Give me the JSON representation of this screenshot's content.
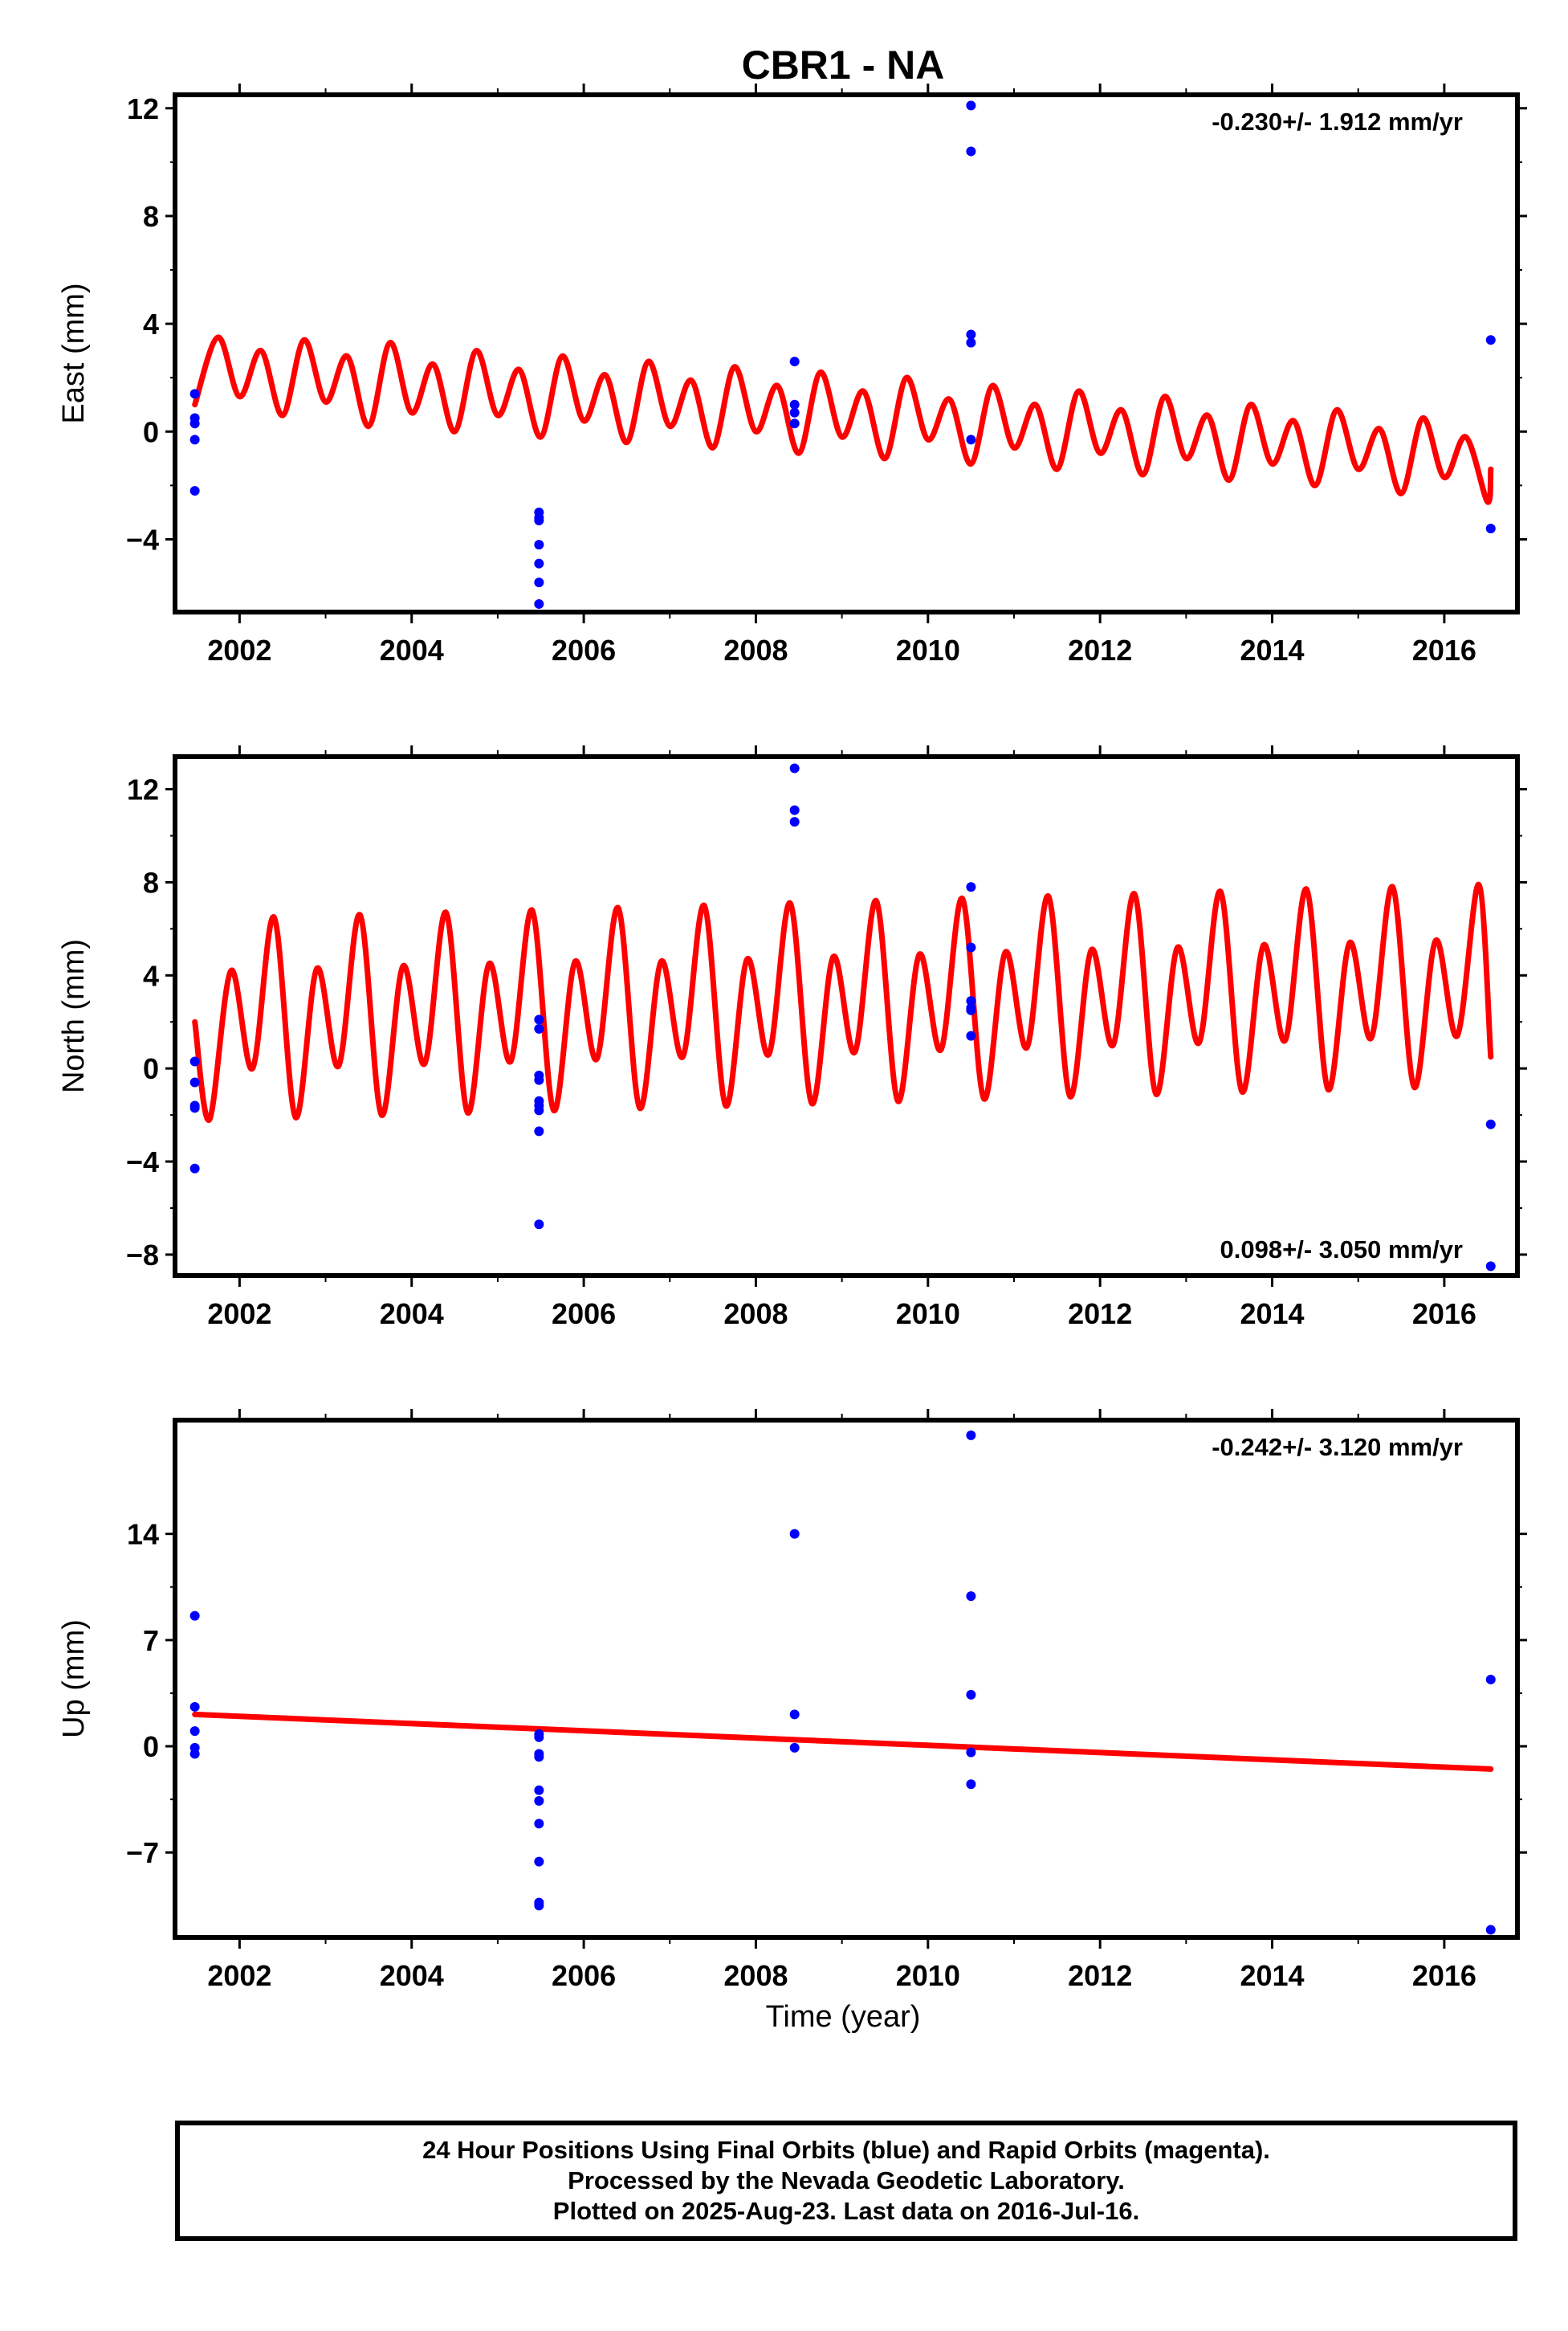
{
  "title": "CBR1 - NA",
  "x_axis_label": "Time (year)",
  "footer": {
    "line1": "24 Hour Positions Using Final Orbits (blue) and Rapid Orbits (magenta).",
    "line2": "Processed by the Nevada Geodetic Laboratory.",
    "line3": "Plotted on 2025-Aug-23. Last data on 2016-Jul-16."
  },
  "colors": {
    "final_orbits": "#0000ff",
    "fit_model": "#ff0000",
    "frame": "#000000"
  },
  "chart_data": [
    {
      "type": "scatter",
      "ylabel": "East (mm)",
      "rate_label": "-0.230+/- 1.912 mm/yr",
      "rate_position": "top-right",
      "xlim": [
        2001.25,
        2016.85
      ],
      "ylim": [
        -6.7,
        12.5
      ],
      "yticks": [
        -4,
        0,
        4,
        8,
        12
      ],
      "xticks": [
        2002,
        2004,
        2006,
        2008,
        2010,
        2012,
        2014,
        2016
      ],
      "series": [
        {
          "kind": "points",
          "x": [
            2001.48,
            2001.48,
            2001.48,
            2001.48,
            2001.48,
            2005.48,
            2005.48,
            2005.48,
            2005.48,
            2005.48,
            2005.48,
            2005.48,
            2008.45,
            2008.45,
            2008.45,
            2008.45,
            2010.5,
            2010.5,
            2010.5,
            2010.5,
            2010.5,
            2016.54,
            2016.54
          ],
          "y": [
            1.4,
            0.5,
            0.3,
            -0.3,
            -2.2,
            -3.0,
            -3.2,
            -3.3,
            -4.2,
            -4.9,
            -5.6,
            -6.4,
            2.6,
            1.0,
            0.7,
            0.3,
            12.1,
            10.4,
            3.6,
            3.3,
            -0.3,
            3.4,
            -3.6
          ]
        },
        {
          "kind": "model",
          "x": [
            2001.48,
            2001.75,
            2002.0,
            2002.25,
            2002.5,
            2002.75,
            2003.0,
            2003.25,
            2003.5,
            2003.75,
            2004.0,
            2004.25,
            2004.5,
            2004.75,
            2005.0,
            2005.25,
            2005.5,
            2005.75,
            2006.0,
            2006.25,
            2006.5,
            2006.75,
            2007.0,
            2007.25,
            2007.5,
            2007.75,
            2008.0,
            2008.25,
            2008.5,
            2008.75,
            2009.0,
            2009.25,
            2009.5,
            2009.75,
            2010.0,
            2010.25,
            2010.5,
            2010.75,
            2011.0,
            2011.25,
            2011.5,
            2011.75,
            2012.0,
            2012.25,
            2012.5,
            2012.75,
            2013.0,
            2013.25,
            2013.5,
            2013.75,
            2014.0,
            2014.25,
            2014.5,
            2014.75,
            2015.0,
            2015.25,
            2015.5,
            2015.75,
            2016.0,
            2016.25,
            2016.5,
            2016.54
          ],
          "y": [
            1.0,
            3.5,
            1.3,
            3.0,
            0.6,
            3.4,
            1.1,
            2.8,
            0.2,
            3.3,
            0.7,
            2.5,
            0.0,
            3.0,
            0.6,
            2.3,
            -0.2,
            2.8,
            0.4,
            2.1,
            -0.4,
            2.6,
            0.2,
            1.9,
            -0.6,
            2.4,
            0.0,
            1.7,
            -0.8,
            2.2,
            -0.2,
            1.5,
            -1.0,
            2.0,
            -0.3,
            1.2,
            -1.2,
            1.7,
            -0.6,
            1.0,
            -1.4,
            1.5,
            -0.8,
            0.8,
            -1.6,
            1.3,
            -1.0,
            0.6,
            -1.8,
            1.0,
            -1.2,
            0.4,
            -2.0,
            0.8,
            -1.4,
            0.1,
            -2.3,
            0.5,
            -1.7,
            -0.2,
            -2.6,
            -1.4
          ]
        }
      ]
    },
    {
      "type": "scatter",
      "ylabel": "North (mm)",
      "rate_label": "0.098+/- 3.050 mm/yr",
      "rate_position": "bottom-right",
      "xlim": [
        2001.25,
        2016.85
      ],
      "ylim": [
        -8.9,
        13.4
      ],
      "yticks": [
        -8,
        -4,
        0,
        4,
        8,
        12
      ],
      "xticks": [
        2002,
        2004,
        2006,
        2008,
        2010,
        2012,
        2014,
        2016
      ],
      "series": [
        {
          "kind": "points",
          "x": [
            2001.48,
            2001.48,
            2001.48,
            2001.48,
            2001.48,
            2005.48,
            2005.48,
            2005.48,
            2005.48,
            2005.48,
            2005.48,
            2005.48,
            2005.48,
            2005.48,
            2008.45,
            2008.45,
            2008.45,
            2010.5,
            2010.5,
            2010.5,
            2010.5,
            2010.5,
            2010.5,
            2016.54,
            2016.54
          ],
          "y": [
            0.3,
            -0.6,
            -1.6,
            -1.7,
            -4.3,
            2.1,
            1.7,
            -0.3,
            -0.5,
            -1.4,
            -1.6,
            -1.8,
            -2.7,
            -6.7,
            12.9,
            11.1,
            10.6,
            7.8,
            5.2,
            2.9,
            2.6,
            2.5,
            1.4,
            -2.4,
            -8.5
          ]
        },
        {
          "kind": "model",
          "x": [
            2001.48,
            2001.65,
            2001.9,
            2002.15,
            2002.4,
            2002.65,
            2002.9,
            2003.15,
            2003.4,
            2003.65,
            2003.9,
            2004.15,
            2004.4,
            2004.65,
            2004.9,
            2005.15,
            2005.4,
            2005.65,
            2005.9,
            2006.15,
            2006.4,
            2006.65,
            2006.9,
            2007.15,
            2007.4,
            2007.65,
            2007.9,
            2008.15,
            2008.4,
            2008.65,
            2008.9,
            2009.15,
            2009.4,
            2009.65,
            2009.9,
            2010.15,
            2010.4,
            2010.65,
            2010.9,
            2011.15,
            2011.4,
            2011.65,
            2011.9,
            2012.15,
            2012.4,
            2012.65,
            2012.9,
            2013.15,
            2013.4,
            2013.65,
            2013.9,
            2014.15,
            2014.4,
            2014.65,
            2014.9,
            2015.15,
            2015.4,
            2015.65,
            2015.9,
            2016.15,
            2016.4,
            2016.54
          ],
          "y": [
            2.0,
            -2.2,
            4.2,
            0.0,
            6.5,
            -2.1,
            4.3,
            0.1,
            6.6,
            -2.0,
            4.4,
            0.2,
            6.7,
            -1.9,
            4.5,
            0.3,
            6.8,
            -1.8,
            4.6,
            0.4,
            6.9,
            -1.7,
            4.6,
            0.5,
            7.0,
            -1.6,
            4.7,
            0.6,
            7.1,
            -1.5,
            4.8,
            0.7,
            7.2,
            -1.4,
            4.9,
            0.8,
            7.3,
            -1.3,
            5.0,
            0.9,
            7.4,
            -1.2,
            5.1,
            1.0,
            7.5,
            -1.1,
            5.2,
            1.1,
            7.6,
            -1.0,
            5.3,
            1.2,
            7.7,
            -0.9,
            5.4,
            1.3,
            7.8,
            -0.8,
            5.5,
            1.4,
            7.9,
            0.5
          ]
        }
      ]
    },
    {
      "type": "scatter",
      "ylabel": "Up (mm)",
      "rate_label": "-0.242+/- 3.120 mm/yr",
      "rate_position": "top-right",
      "xlim": [
        2001.25,
        2016.85
      ],
      "ylim": [
        -12.6,
        21.5
      ],
      "yticks": [
        -7,
        0,
        7,
        14
      ],
      "xticks": [
        2002,
        2004,
        2006,
        2008,
        2010,
        2012,
        2014,
        2016
      ],
      "series": [
        {
          "kind": "points",
          "x": [
            2001.48,
            2001.48,
            2001.48,
            2001.48,
            2001.48,
            2005.48,
            2005.48,
            2005.48,
            2005.48,
            2005.48,
            2005.48,
            2005.48,
            2005.48,
            2005.48,
            2005.48,
            2008.45,
            2008.45,
            2008.45,
            2010.5,
            2010.5,
            2010.5,
            2010.5,
            2010.5,
            2016.54,
            2016.54
          ],
          "y": [
            8.6,
            2.6,
            1.0,
            -0.1,
            -0.5,
            0.8,
            0.6,
            -0.5,
            -0.7,
            -2.9,
            -3.6,
            -5.1,
            -7.6,
            -10.3,
            -10.5,
            14.0,
            2.1,
            -0.1,
            20.5,
            9.9,
            3.4,
            -0.4,
            -2.5,
            4.4,
            -12.1
          ]
        },
        {
          "kind": "model",
          "x": [
            2001.48,
            2016.54
          ],
          "y": [
            2.1,
            -1.5
          ]
        }
      ]
    }
  ]
}
